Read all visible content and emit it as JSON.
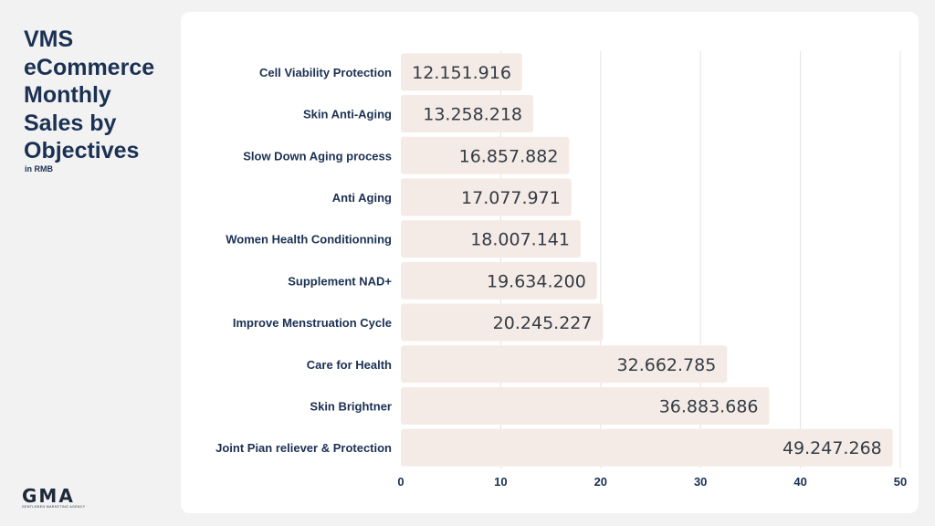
{
  "title": "VMS\neCommerce\nMonthly\nSales  by\nObjectives",
  "subtitle": "in RMB",
  "logo": {
    "text": "GMA",
    "tagline": "GENTLEMEN MARKETING AGENCY"
  },
  "colors": {
    "bar": "#f5ebe6",
    "title": "#1b3153",
    "grid": "#e3e3e3"
  },
  "chart_data": {
    "type": "bar",
    "orientation": "horizontal",
    "categories": [
      "Cell Viability Protection",
      "Skin Anti-Aging",
      "Slow Down Aging process",
      "Anti Aging",
      "Women Health Conditionning",
      "Supplement NAD+",
      "Improve Menstruation Cycle",
      "Care for Health",
      "Skin Brightner",
      "Joint Pian reliever & Protection"
    ],
    "values": [
      12.151916,
      13.258218,
      16.857882,
      17.077971,
      18.007141,
      19.6342,
      20.245227,
      32.662785,
      36.883686,
      49.247268
    ],
    "value_labels": [
      "12.151.916",
      "13.258.218",
      "16.857.882",
      "17.077.971",
      "18.007.141",
      "19.634.200",
      "20.245.227",
      "32.662.785",
      "36.883.686",
      "49.247.268"
    ],
    "xlim": [
      0,
      50
    ],
    "xticks": [
      0,
      10,
      20,
      30,
      40,
      50
    ],
    "grid": true,
    "xlabel": "",
    "ylabel": ""
  }
}
